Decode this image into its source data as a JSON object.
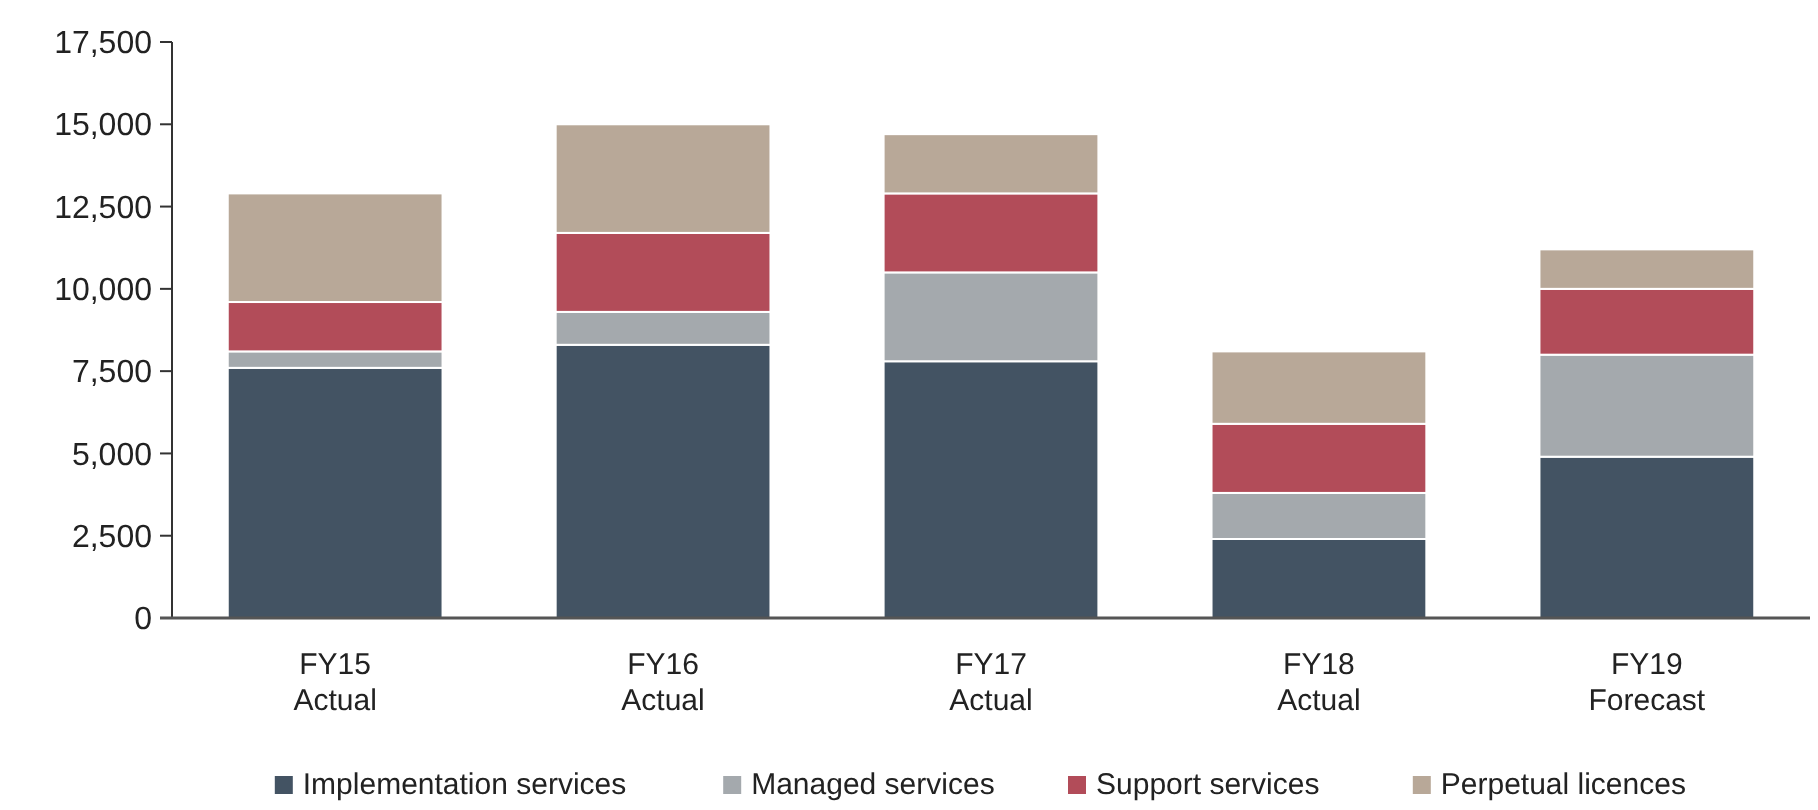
{
  "chart_data": {
    "type": "bar",
    "stacked": true,
    "categories": [
      "FY15\nActual",
      "FY16\nActual",
      "FY17\nActual",
      "FY18\nActual",
      "FY19\nForecast"
    ],
    "series": [
      {
        "name": "Implementation services",
        "color": "#435363",
        "values": [
          7600,
          8300,
          7800,
          2400,
          4900
        ]
      },
      {
        "name": "Managed services",
        "color": "#a4a9ad",
        "values": [
          500,
          1000,
          2700,
          1400,
          3100
        ]
      },
      {
        "name": "Support services",
        "color": "#b24c59",
        "values": [
          1500,
          2400,
          2400,
          2100,
          2000
        ]
      },
      {
        "name": "Perpetual licences",
        "color": "#b8a898",
        "values": [
          3300,
          3300,
          1800,
          2200,
          1200
        ]
      }
    ],
    "ylim": [
      0,
      17500
    ],
    "yticks": [
      {
        "value": 0,
        "label": "0"
      },
      {
        "value": 2500,
        "label": "2,500"
      },
      {
        "value": 5000,
        "label": "5,000"
      },
      {
        "value": 7500,
        "label": "7,500"
      },
      {
        "value": 10000,
        "label": "10,000"
      },
      {
        "value": 12500,
        "label": "12,500"
      },
      {
        "value": 15000,
        "label": "15,000"
      },
      {
        "value": 17500,
        "label": "17,500"
      }
    ],
    "grid": false,
    "legend": "bottom"
  }
}
